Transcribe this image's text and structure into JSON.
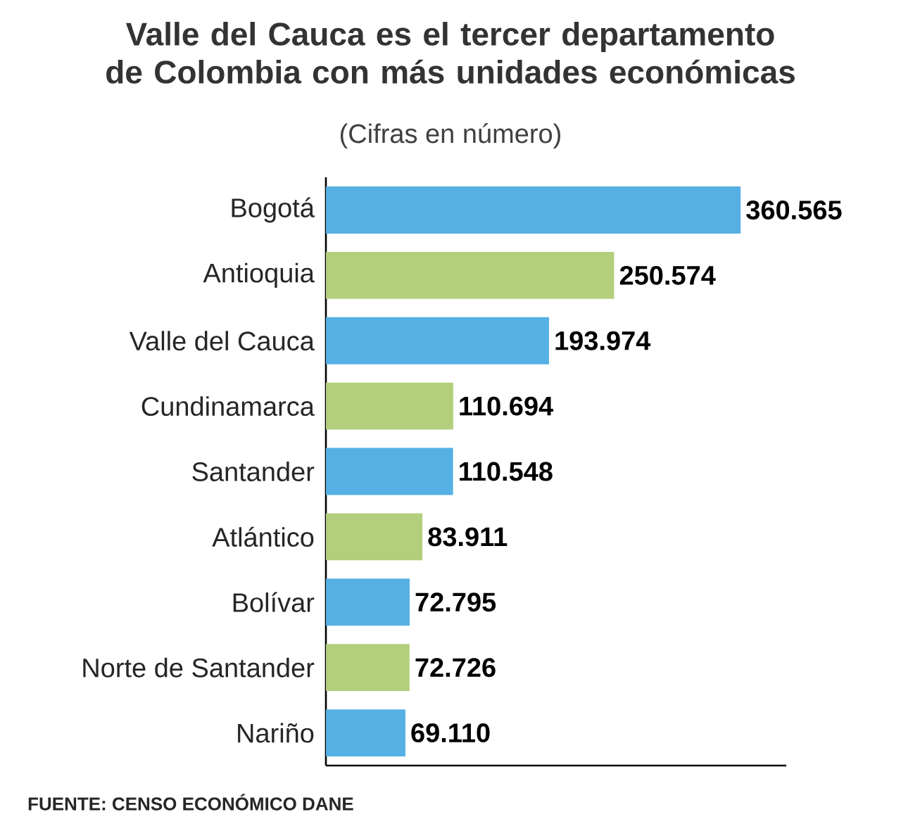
{
  "chart_data": {
    "type": "bar",
    "orientation": "horizontal",
    "title": "Valle del Cauca es el tercer departamento de Colombia con más unidades económicas",
    "subtitle": "(Cifras en número)",
    "categories": [
      "Bogotá",
      "Antioquia",
      "Valle del Cauca",
      "Cundinamarca",
      "Santander",
      "Atlántico",
      "Bolívar",
      "Norte de Santander",
      "Nariño"
    ],
    "values": [
      360565,
      250574,
      193974,
      110694,
      110548,
      83911,
      72795,
      72726,
      69110
    ],
    "value_labels": [
      "360.565",
      "250.574",
      "193.974",
      "110.694",
      "110.548",
      "83.911",
      "72.795",
      "72.726",
      "69.110"
    ],
    "colors": [
      "#56b0e3",
      "#b3cf7e",
      "#56b0e3",
      "#b3cf7e",
      "#56b0e3",
      "#b3cf7e",
      "#56b0e3",
      "#b3cf7e",
      "#56b0e3"
    ],
    "annotations": [
      "FUENTE: CENSO ECONÓMICO DANE"
    ]
  }
}
